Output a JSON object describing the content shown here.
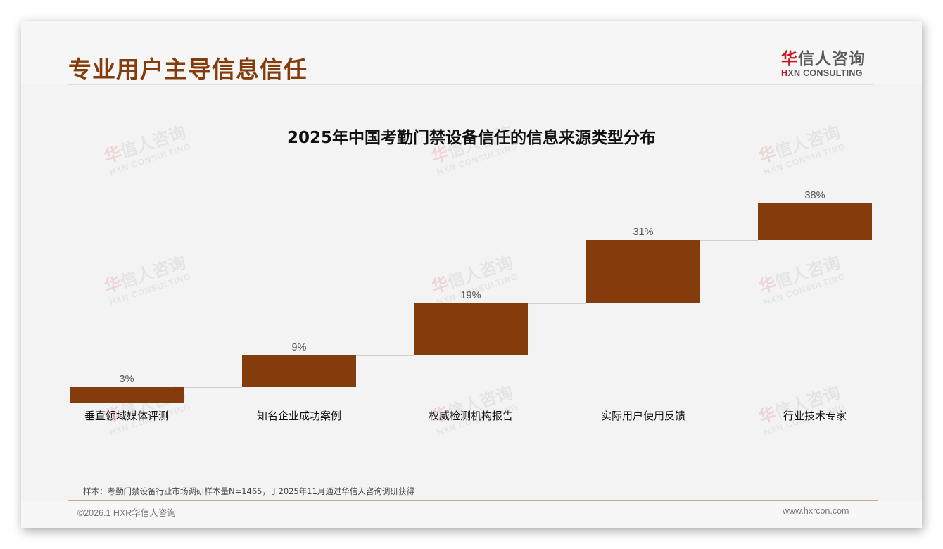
{
  "header": {
    "page_title": "专业用户主导信息信任",
    "logo": {
      "cn_accent": "华",
      "cn_rest": "信人咨询",
      "en_accent": "H",
      "en_rest": "XN CONSULTING"
    }
  },
  "watermark": {
    "cn_accent": "华",
    "cn_rest": "信人咨询",
    "en": "HXN CONSULTING"
  },
  "colors": {
    "bar": "#843c0c",
    "title": "#843c0c",
    "logo_red": "#c9151e",
    "background": "#f3f3f3"
  },
  "chart_data": {
    "type": "bar",
    "subtype": "waterfall",
    "title": "2025年中国考勤门禁设备信任的信息来源类型分布",
    "categories": [
      "垂直领域媒体评测",
      "知名企业成功案例",
      "权威检测机构报告",
      "实际用户使用反馈",
      "行业技术专家"
    ],
    "values": [
      3,
      9,
      19,
      31,
      38
    ],
    "value_labels": [
      "3%",
      "9%",
      "19%",
      "31%",
      "38%"
    ],
    "xlabel": "",
    "ylabel": "",
    "ylim": [
      0,
      38
    ],
    "grid": false,
    "legend": null
  },
  "footer": {
    "note": "样本：考勤门禁设备行业市场调研样本量N=1465，于2025年11月通过华信人咨询调研获得",
    "copyright": "©2026.1 HXR华信人咨询",
    "website": "www.hxrcon.com"
  }
}
